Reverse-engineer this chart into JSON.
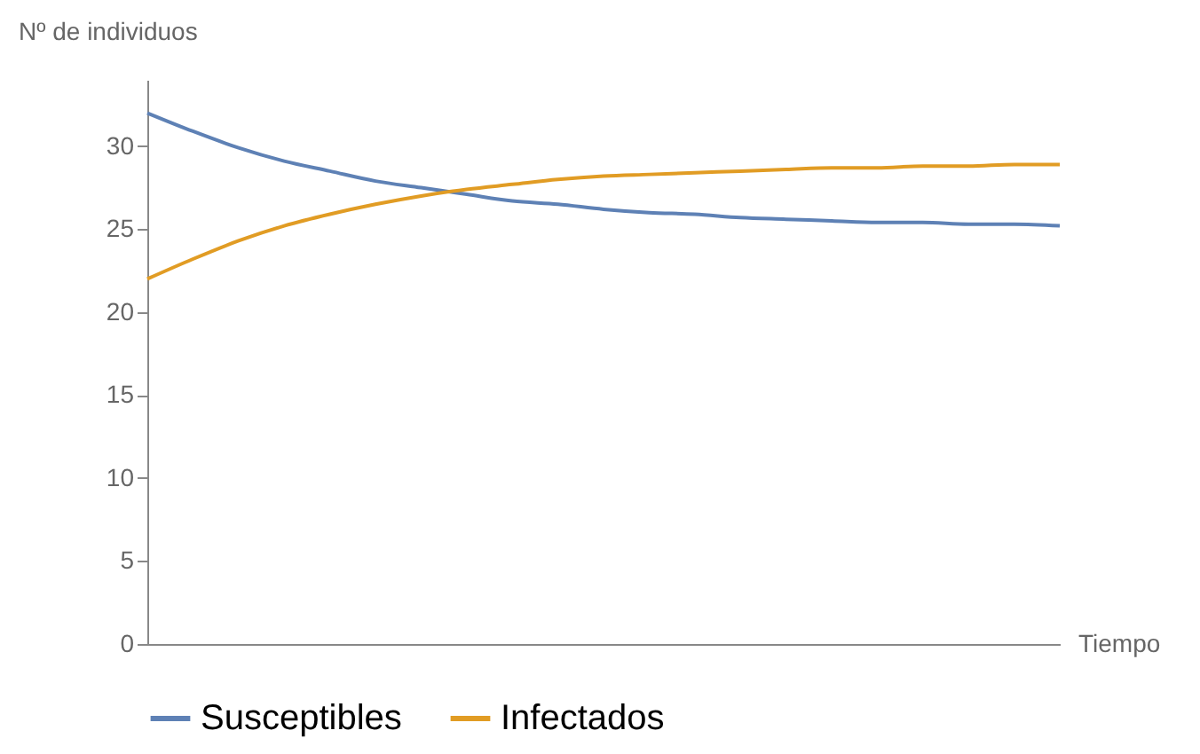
{
  "chart_data": {
    "type": "line",
    "ylabel": "Nº de individuos",
    "xlabel": "Tiempo",
    "categories": [
      null,
      null,
      null,
      null,
      null,
      null,
      null,
      null,
      null,
      null,
      null,
      null,
      null,
      null,
      null,
      null,
      null,
      null,
      null,
      null,
      null
    ],
    "series": [
      {
        "name": "Susceptibles",
        "color": "#5e81b5",
        "values": [
          32,
          30.9,
          29.9,
          29.1,
          28.5,
          27.9,
          27.5,
          27.1,
          26.7,
          26.5,
          26.2,
          26.0,
          25.9,
          25.7,
          25.6,
          25.5,
          25.4,
          25.4,
          25.3,
          25.3,
          25.2
        ]
      },
      {
        "name": "Infectados",
        "color": "#e19c24",
        "values": [
          22,
          23.2,
          24.3,
          25.2,
          25.9,
          26.5,
          27.0,
          27.4,
          27.7,
          28.0,
          28.2,
          28.3,
          28.4,
          28.5,
          28.6,
          28.7,
          28.7,
          28.8,
          28.8,
          28.9,
          28.9
        ]
      }
    ],
    "ylim": [
      0,
      34
    ],
    "yticks": [
      0,
      5,
      10,
      15,
      20,
      25,
      30
    ],
    "grid": false,
    "legend": "bottom",
    "tick_labels": "y",
    "marker": "none",
    "line_style": "solid"
  }
}
